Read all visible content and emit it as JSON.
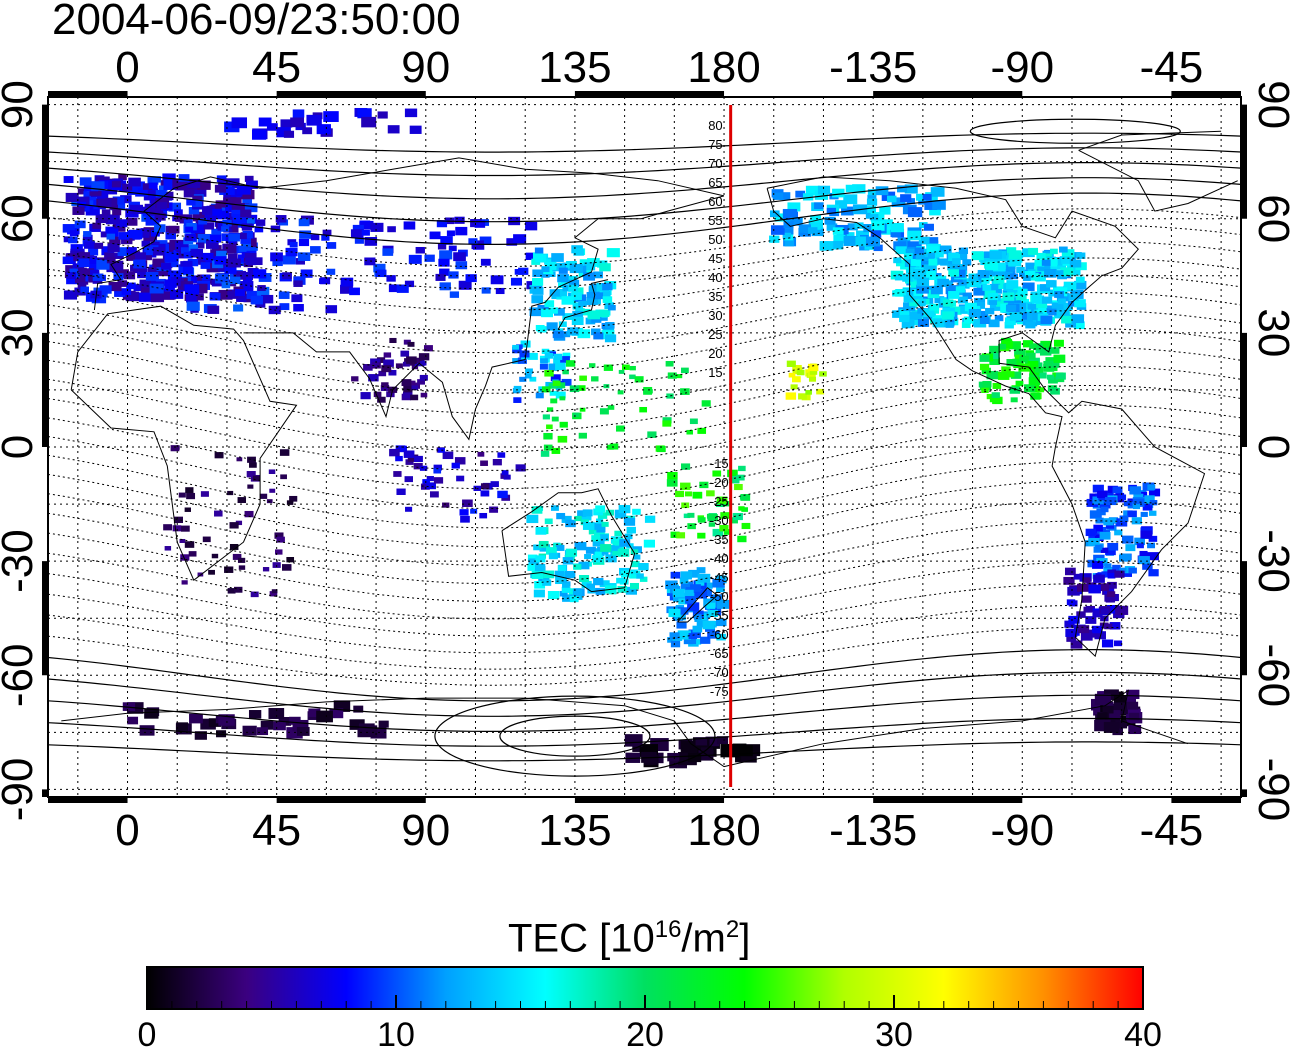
{
  "title": "2004-06-09/23:50:00",
  "map": {
    "lon_tick_labels": [
      "0",
      "45",
      "90",
      "135",
      "180",
      "-135",
      "-90",
      "-45"
    ],
    "lat_tick_labels": [
      "90",
      "60",
      "30",
      "0",
      "-30",
      "-60",
      "-90"
    ],
    "lon_ticks": [
      0,
      45,
      90,
      135,
      180,
      225,
      270,
      315
    ],
    "lat_ticks": [
      90,
      60,
      30,
      0,
      -30,
      -60,
      -90
    ],
    "lon_range_0_360": [
      -24,
      336
    ],
    "lat_range": [
      -92,
      92
    ],
    "terminator_line": {
      "lon": 182,
      "color": "#dd0000"
    },
    "mlat_labels_north": [
      "80",
      "75",
      "70",
      "65",
      "60",
      "55",
      "50",
      "45",
      "40",
      "35",
      "30",
      "25",
      "20",
      "15"
    ],
    "mlat_labels_south": [
      "-15",
      "-20",
      "-25",
      "-30",
      "-35",
      "-40",
      "-45",
      "-50",
      "-55",
      "-60",
      "-65",
      "-70",
      "-75"
    ],
    "grid": "dotted",
    "coastlines": true
  },
  "colorbar": {
    "title_main": "TEC  [10",
    "title_exp1": "16",
    "title_mid": "/m",
    "title_exp2": "2",
    "title_end": "]",
    "min": 0,
    "max": 40,
    "tick_labels": [
      "0",
      "10",
      "20",
      "30",
      "40"
    ],
    "colors": [
      "#000000",
      "#3b0080",
      "#0000ff",
      "#00a0ff",
      "#00ffff",
      "#00e060",
      "#00ff00",
      "#b0ff00",
      "#ffff00",
      "#ff9000",
      "#ff0000"
    ]
  }
}
